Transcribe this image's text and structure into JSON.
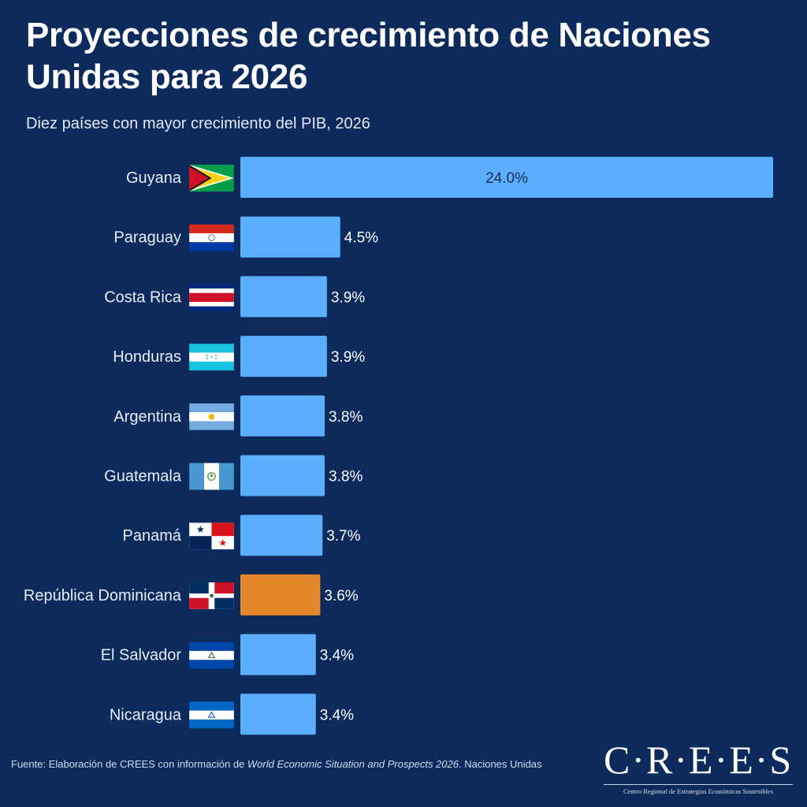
{
  "header": {
    "title": "Proyecciones de crecimiento de Naciones Unidas para 2026",
    "subtitle": "Diez países con mayor crecimiento del PIB, 2026"
  },
  "colors": {
    "background": "#0c2a5c",
    "bar": "#5aaefc",
    "highlight_bar": "#e5862a"
  },
  "chart_data": {
    "type": "bar",
    "orientation": "horizontal",
    "title": "Proyecciones de crecimiento de Naciones Unidas para 2026",
    "subtitle": "Diez países con mayor crecimiento del PIB, 2026",
    "xlabel": "",
    "ylabel": "",
    "unit": "%",
    "xlim": [
      0,
      24
    ],
    "grid": false,
    "categories": [
      "Guyana",
      "Paraguay",
      "Costa Rica",
      "Honduras",
      "Argentina",
      "Guatemala",
      "Panamá",
      "República Dominicana",
      "El Salvador",
      "Nicaragua"
    ],
    "values": [
      24.0,
      4.5,
      3.9,
      3.9,
      3.8,
      3.8,
      3.7,
      3.6,
      3.4,
      3.4
    ],
    "value_labels": [
      "24.0%",
      "4.5%",
      "3.9%",
      "3.9%",
      "3.8%",
      "3.8%",
      "3.7%",
      "3.6%",
      "3.4%",
      "3.4%"
    ],
    "highlighted_category": "República Dominicana",
    "flag_icons": [
      "guyana-flag-icon",
      "paraguay-flag-icon",
      "costa-rica-flag-icon",
      "honduras-flag-icon",
      "argentina-flag-icon",
      "guatemala-flag-icon",
      "panama-flag-icon",
      "dominican-republic-flag-icon",
      "el-salvador-flag-icon",
      "nicaragua-flag-icon"
    ]
  },
  "footer": {
    "source_prefix": "Fuente: Elaboración de CREES con información de ",
    "source_italic": "World Economic Situation and Prospects 2026",
    "source_suffix": ". Naciones Unidas",
    "logo_text": "C·R·E·E·S",
    "logo_tagline": "Centro Regional de Estrategias Económicas Sostenibles"
  }
}
